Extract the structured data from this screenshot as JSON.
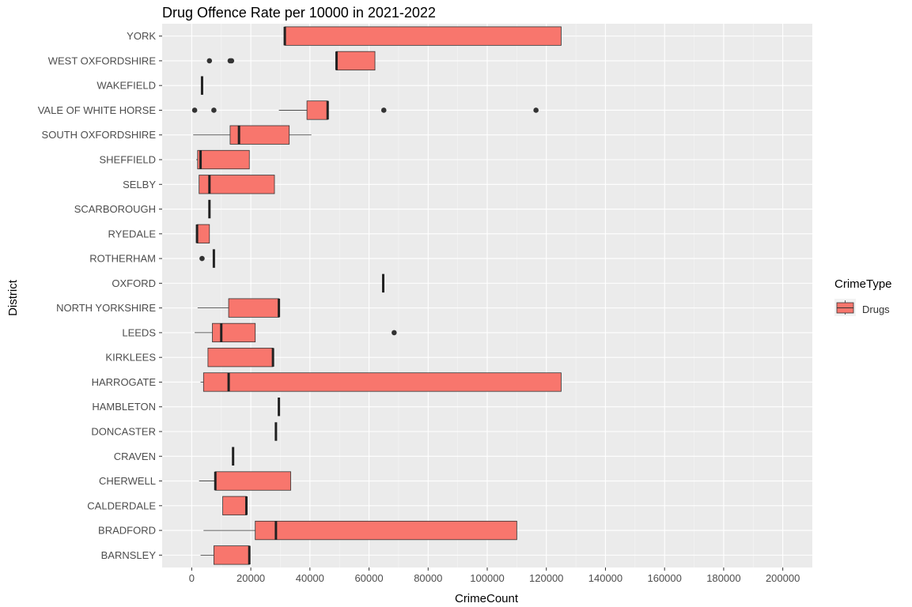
{
  "chart_data": {
    "type": "boxplot",
    "orientation": "horizontal",
    "title": "Drug Offence Rate per 10000 in 2021-2022",
    "xlabel": "CrimeCount",
    "ylabel": "District",
    "xlim": [
      -10000,
      210000
    ],
    "x_ticks": [
      0,
      20000,
      40000,
      60000,
      80000,
      100000,
      120000,
      140000,
      160000,
      180000,
      200000
    ],
    "grid": true,
    "legend": {
      "title": "CrimeType",
      "position": "right",
      "entries": [
        {
          "name": "Drugs",
          "color": "#F8766D"
        }
      ]
    },
    "fill_color": "#F8766D",
    "panel_color": "#EBEBEB",
    "categories": [
      "YORK",
      "WEST OXFORDSHIRE",
      "WAKEFIELD",
      "VALE OF WHITE HORSE",
      "SOUTH OXFORDSHIRE",
      "SHEFFIELD",
      "SELBY",
      "SCARBOROUGH",
      "RYEDALE",
      "ROTHERHAM",
      "OXFORD",
      "NORTH YORKSHIRE",
      "LEEDS",
      "KIRKLEES",
      "HARROGATE",
      "HAMBLETON",
      "DONCASTER",
      "CRAVEN",
      "CHERWELL",
      "CALDERDALE",
      "BRADFORD",
      "BARNSLEY"
    ],
    "boxes": [
      {
        "district": "YORK",
        "min": 31500,
        "q1": 31500,
        "median": 31500,
        "q3": 125000,
        "max": 125000,
        "outliers": []
      },
      {
        "district": "WEST OXFORDSHIRE",
        "min": 49000,
        "q1": 49000,
        "median": 49000,
        "q3": 62000,
        "max": 62000,
        "outliers": [
          6000,
          13000,
          13500
        ]
      },
      {
        "district": "WAKEFIELD",
        "min": 3500,
        "q1": 3500,
        "median": 3500,
        "q3": 3500,
        "max": 3500,
        "outliers": []
      },
      {
        "district": "VALE OF WHITE HORSE",
        "min": 29500,
        "q1": 39000,
        "median": 46000,
        "q3": 46000,
        "max": 46000,
        "outliers": [
          1000,
          7500,
          65000,
          116500
        ]
      },
      {
        "district": "SOUTH OXFORDSHIRE",
        "min": 500,
        "q1": 13000,
        "median": 16000,
        "q3": 33000,
        "max": 40500,
        "outliers": []
      },
      {
        "district": "SHEFFIELD",
        "min": 1500,
        "q1": 2000,
        "median": 3000,
        "q3": 19500,
        "max": 19500,
        "outliers": []
      },
      {
        "district": "SELBY",
        "min": 2500,
        "q1": 2500,
        "median": 6000,
        "q3": 28000,
        "max": 28000,
        "outliers": []
      },
      {
        "district": "SCARBOROUGH",
        "min": 6000,
        "q1": 6000,
        "median": 6000,
        "q3": 6000,
        "max": 6000,
        "outliers": []
      },
      {
        "district": "RYEDALE",
        "min": 1800,
        "q1": 1800,
        "median": 1800,
        "q3": 6000,
        "max": 6000,
        "outliers": []
      },
      {
        "district": "ROTHERHAM",
        "min": 7500,
        "q1": 7500,
        "median": 7500,
        "q3": 7500,
        "max": 7500,
        "outliers": [
          3500
        ]
      },
      {
        "district": "OXFORD",
        "min": 64800,
        "q1": 64800,
        "median": 64800,
        "q3": 64800,
        "max": 64800,
        "outliers": []
      },
      {
        "district": "NORTH YORKSHIRE",
        "min": 2000,
        "q1": 12500,
        "median": 29500,
        "q3": 29500,
        "max": 29500,
        "outliers": []
      },
      {
        "district": "LEEDS",
        "min": 1000,
        "q1": 7000,
        "median": 10000,
        "q3": 21500,
        "max": 21500,
        "outliers": [
          68500
        ]
      },
      {
        "district": "KIRKLEES",
        "min": 5500,
        "q1": 5500,
        "median": 27500,
        "q3": 27500,
        "max": 27500,
        "outliers": []
      },
      {
        "district": "HARROGATE",
        "min": 3000,
        "q1": 4000,
        "median": 12500,
        "q3": 125000,
        "max": 125000,
        "outliers": []
      },
      {
        "district": "HAMBLETON",
        "min": 29500,
        "q1": 29500,
        "median": 29500,
        "q3": 29500,
        "max": 29500,
        "outliers": []
      },
      {
        "district": "DONCASTER",
        "min": 28500,
        "q1": 28500,
        "median": 28500,
        "q3": 28500,
        "max": 28500,
        "outliers": []
      },
      {
        "district": "CRAVEN",
        "min": 14000,
        "q1": 14000,
        "median": 14000,
        "q3": 14000,
        "max": 14000,
        "outliers": []
      },
      {
        "district": "CHERWELL",
        "min": 2500,
        "q1": 8000,
        "median": 8000,
        "q3": 33500,
        "max": 33500,
        "outliers": []
      },
      {
        "district": "CALDERDALE",
        "min": 10500,
        "q1": 10500,
        "median": 18500,
        "q3": 18500,
        "max": 18500,
        "outliers": []
      },
      {
        "district": "BRADFORD",
        "min": 4000,
        "q1": 21500,
        "median": 28500,
        "q3": 110000,
        "max": 110000,
        "outliers": []
      },
      {
        "district": "BARNSLEY",
        "min": 3000,
        "q1": 7500,
        "median": 19500,
        "q3": 19500,
        "max": 19500,
        "outliers": []
      }
    ]
  }
}
